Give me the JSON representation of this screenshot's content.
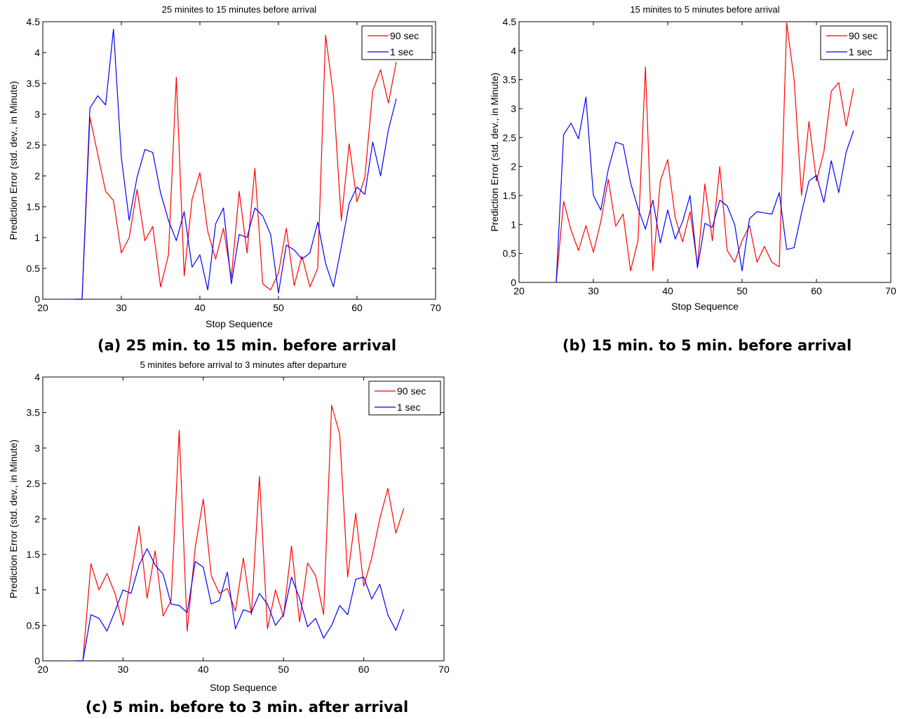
{
  "chart_data": [
    {
      "type": "line",
      "title": "25  minites to 15 minutes before arrival",
      "caption": "(a) 25 min. to 15 min. before arrival",
      "xlabel": "Stop Sequence",
      "ylabel": "Prediction Error (std. dev., in Minute)",
      "xlim": [
        20,
        70
      ],
      "ylim": [
        0,
        4.5
      ],
      "xticks": [
        20,
        30,
        40,
        50,
        60,
        70
      ],
      "yticks": [
        0,
        0.5,
        1,
        1.5,
        2,
        2.5,
        3,
        3.5,
        4,
        4.5
      ],
      "legend_position": "top-right",
      "series": [
        {
          "name": "90 sec",
          "color": "#ff0000",
          "x": [
            24,
            25,
            26,
            27,
            28,
            29,
            30,
            31,
            32,
            33,
            34,
            35,
            36,
            37,
            38,
            39,
            40,
            41,
            42,
            43,
            44,
            45,
            46,
            47,
            48,
            49,
            50,
            51,
            52,
            53,
            54,
            55,
            56,
            57,
            58,
            59,
            60,
            61,
            62,
            63,
            64,
            65
          ],
          "y": [
            0,
            0,
            2.95,
            2.35,
            1.75,
            1.6,
            0.75,
            1.0,
            1.78,
            0.95,
            1.18,
            0.2,
            0.72,
            3.6,
            0.38,
            1.62,
            2.05,
            1.1,
            0.65,
            1.15,
            0.35,
            1.75,
            0.75,
            2.12,
            0.25,
            0.15,
            0.42,
            1.15,
            0.22,
            0.7,
            0.2,
            0.5,
            4.28,
            3.3,
            1.28,
            2.52,
            1.58,
            1.98,
            3.38,
            3.72,
            3.18,
            3.85
          ]
        },
        {
          "name": "1 sec",
          "color": "#0000ff",
          "x": [
            24,
            25,
            26,
            27,
            28,
            29,
            30,
            31,
            32,
            33,
            34,
            35,
            36,
            37,
            38,
            39,
            40,
            41,
            42,
            43,
            44,
            45,
            46,
            47,
            48,
            49,
            50,
            51,
            52,
            53,
            54,
            55,
            56,
            57,
            58,
            59,
            60,
            61,
            62,
            63,
            64,
            65
          ],
          "y": [
            0,
            0,
            3.1,
            3.3,
            3.15,
            4.38,
            2.3,
            1.28,
            1.98,
            2.43,
            2.38,
            1.72,
            1.28,
            0.95,
            1.42,
            0.52,
            0.72,
            0.15,
            1.22,
            1.48,
            0.25,
            1.05,
            1.0,
            1.48,
            1.35,
            1.05,
            0.1,
            0.88,
            0.8,
            0.65,
            0.75,
            1.25,
            0.58,
            0.2,
            0.85,
            1.55,
            1.82,
            1.7,
            2.55,
            2.0,
            2.75,
            3.25
          ]
        }
      ]
    },
    {
      "type": "line",
      "title": "15  minites to 5 minutes before arrival",
      "caption": "(b) 15 min. to 5 min. before arrival",
      "xlabel": "Stop Sequence",
      "ylabel": "Prediction Error (std. dev., in Minute)",
      "xlim": [
        20,
        70
      ],
      "ylim": [
        0,
        4.5
      ],
      "xticks": [
        20,
        30,
        40,
        50,
        60,
        70
      ],
      "yticks": [
        0,
        0.5,
        1,
        1.5,
        2,
        2.5,
        3,
        3.5,
        4,
        4.5
      ],
      "legend_position": "top-right",
      "series": [
        {
          "name": "90 sec",
          "color": "#ff0000",
          "x": [
            25,
            26,
            27,
            28,
            29,
            30,
            31,
            32,
            33,
            34,
            35,
            36,
            37,
            38,
            39,
            40,
            41,
            42,
            43,
            44,
            45,
            46,
            47,
            48,
            49,
            50,
            51,
            52,
            53,
            54,
            55,
            56,
            57,
            58,
            59,
            60,
            61,
            62,
            63,
            64,
            65
          ],
          "y": [
            0,
            1.4,
            0.9,
            0.55,
            0.98,
            0.52,
            1.05,
            1.78,
            0.97,
            1.18,
            0.2,
            0.72,
            3.72,
            0.2,
            1.75,
            2.12,
            1.12,
            0.7,
            1.22,
            0.3,
            1.7,
            0.72,
            2.0,
            0.55,
            0.35,
            0.72,
            0.98,
            0.35,
            0.62,
            0.35,
            0.27,
            4.48,
            3.5,
            1.5,
            2.78,
            1.75,
            2.25,
            3.3,
            3.45,
            2.7,
            3.35
          ]
        },
        {
          "name": "1 sec",
          "color": "#0000ff",
          "x": [
            25,
            26,
            27,
            28,
            29,
            30,
            31,
            32,
            33,
            34,
            35,
            36,
            37,
            38,
            39,
            40,
            41,
            42,
            43,
            44,
            45,
            46,
            47,
            48,
            49,
            50,
            51,
            52,
            53,
            54,
            55,
            56,
            57,
            58,
            59,
            60,
            61,
            62,
            63,
            64,
            65
          ],
          "y": [
            0,
            2.55,
            2.75,
            2.48,
            3.2,
            1.5,
            1.25,
            1.95,
            2.42,
            2.38,
            1.72,
            1.28,
            0.92,
            1.42,
            0.68,
            1.25,
            0.75,
            1.05,
            1.5,
            0.25,
            1.02,
            0.95,
            1.42,
            1.32,
            1.0,
            0.2,
            1.1,
            1.22,
            1.2,
            1.18,
            1.55,
            0.57,
            0.6,
            1.2,
            1.75,
            1.85,
            1.38,
            2.1,
            1.55,
            2.25,
            2.62
          ]
        }
      ]
    },
    {
      "type": "line",
      "title": "5  minites before arrival to 3 minutes after departure",
      "caption": "(c) 5 min. before to 3 min. after arrival",
      "xlabel": "Stop Sequence",
      "ylabel": "Prediction Error (std. dev., in Minute)",
      "xlim": [
        20,
        70
      ],
      "ylim": [
        0,
        4
      ],
      "xticks": [
        20,
        30,
        40,
        50,
        60,
        70
      ],
      "yticks": [
        0,
        0.5,
        1,
        1.5,
        2,
        2.5,
        3,
        3.5,
        4
      ],
      "legend_position": "top-right",
      "series": [
        {
          "name": "90 sec",
          "color": "#ff0000",
          "x": [
            24,
            25,
            26,
            27,
            28,
            29,
            30,
            31,
            32,
            33,
            34,
            35,
            36,
            37,
            38,
            39,
            40,
            41,
            42,
            43,
            44,
            45,
            46,
            47,
            48,
            49,
            50,
            51,
            52,
            53,
            54,
            55,
            56,
            57,
            58,
            59,
            60,
            61,
            62,
            63,
            64,
            65
          ],
          "y": [
            0,
            0,
            1.37,
            1.0,
            1.23,
            0.95,
            0.5,
            1.2,
            1.9,
            0.88,
            1.55,
            0.63,
            0.85,
            3.25,
            0.42,
            1.6,
            2.28,
            1.2,
            0.95,
            1.02,
            0.7,
            1.45,
            0.65,
            2.6,
            0.45,
            1.0,
            0.62,
            1.62,
            0.55,
            1.38,
            1.2,
            0.65,
            3.6,
            3.2,
            1.18,
            2.08,
            1.05,
            1.45,
            2.0,
            2.43,
            1.8,
            2.15
          ]
        },
        {
          "name": "1 sec",
          "color": "#0000ff",
          "x": [
            24,
            25,
            26,
            27,
            28,
            29,
            30,
            31,
            32,
            33,
            34,
            35,
            36,
            37,
            38,
            39,
            40,
            41,
            42,
            43,
            44,
            45,
            46,
            47,
            48,
            49,
            50,
            51,
            52,
            53,
            54,
            55,
            56,
            57,
            58,
            59,
            60,
            61,
            62,
            63,
            64,
            65
          ],
          "y": [
            0,
            0,
            0.65,
            0.6,
            0.42,
            0.7,
            1.0,
            0.95,
            1.35,
            1.58,
            1.35,
            1.22,
            0.8,
            0.78,
            0.68,
            1.4,
            1.32,
            0.8,
            0.85,
            1.25,
            0.45,
            0.72,
            0.68,
            0.95,
            0.8,
            0.5,
            0.65,
            1.18,
            0.88,
            0.48,
            0.6,
            0.32,
            0.5,
            0.78,
            0.65,
            1.15,
            1.18,
            0.87,
            1.08,
            0.65,
            0.43,
            0.73
          ]
        }
      ]
    }
  ]
}
